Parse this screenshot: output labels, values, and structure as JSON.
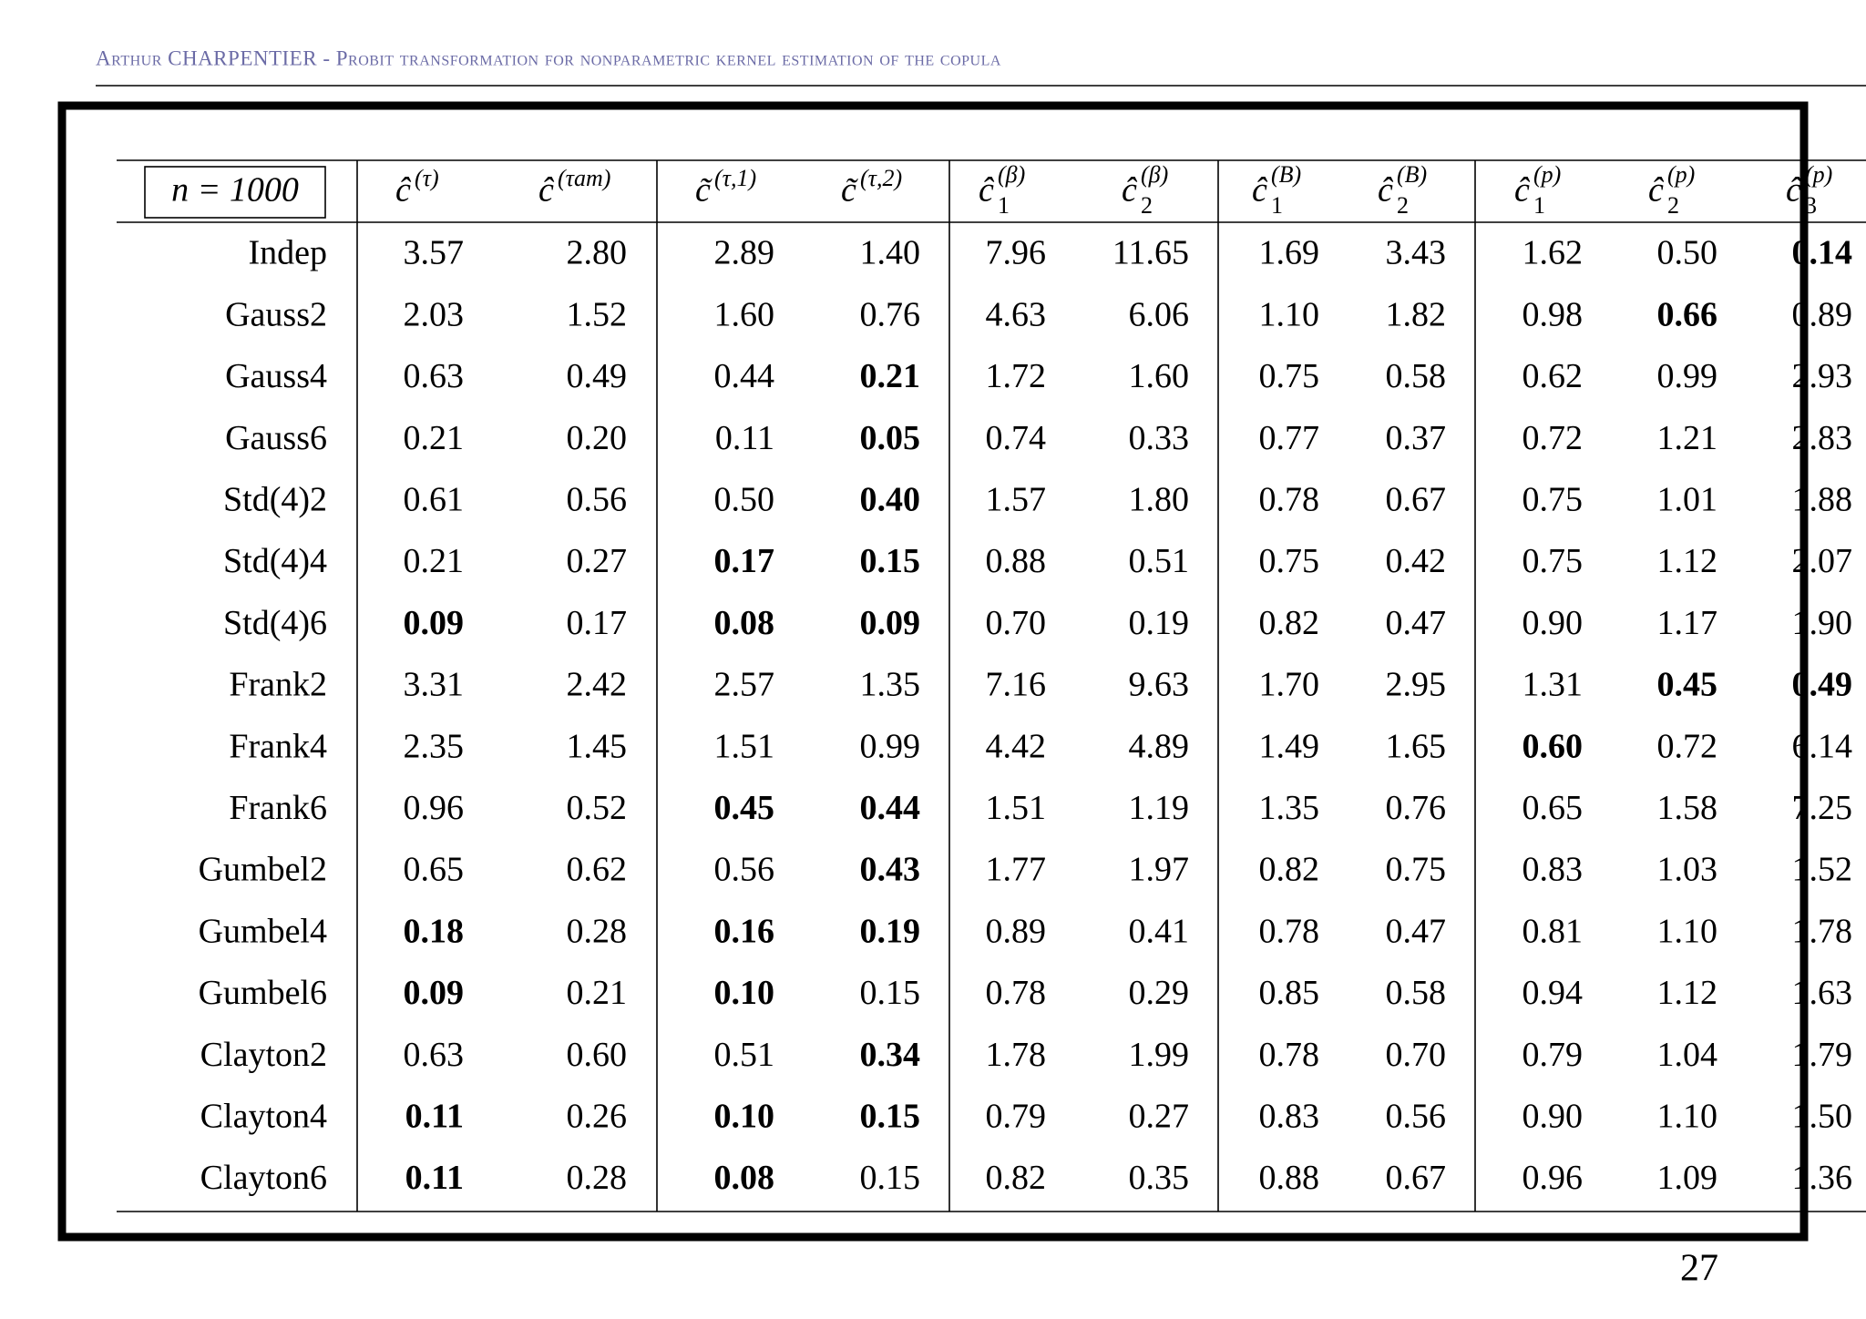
{
  "header": {
    "title": "Arthur CHARPENTIER - Probit transformation for nonparametric kernel estimation of the copula"
  },
  "table": {
    "corner": "n = 1000",
    "columns": [
      {
        "base": "ĉ",
        "sup": "(τ)"
      },
      {
        "base": "ĉ",
        "sup": "(τam)"
      },
      {
        "base": "c̃",
        "sup": "(τ,1)"
      },
      {
        "base": "c̃",
        "sup": "(τ,2)"
      },
      {
        "base": "ĉ",
        "sup": "(β)",
        "sub": "1"
      },
      {
        "base": "ĉ",
        "sup": "(β)",
        "sub": "2"
      },
      {
        "base": "ĉ",
        "sup": "(B)",
        "sub": "1"
      },
      {
        "base": "ĉ",
        "sup": "(B)",
        "sub": "2"
      },
      {
        "base": "ĉ",
        "sup": "(p)",
        "sub": "1"
      },
      {
        "base": "ĉ",
        "sup": "(p)",
        "sub": "2"
      },
      {
        "base": "ĉ",
        "sup": "(p)",
        "sub": "3"
      }
    ],
    "rows": [
      {
        "name": "Indep",
        "values": [
          "3.57",
          "2.80",
          "2.89",
          "1.40",
          "7.96",
          "11.65",
          "1.69",
          "3.43",
          "1.62",
          "0.50",
          "0.14"
        ],
        "bold": [
          10
        ]
      },
      {
        "name": "Gauss2",
        "values": [
          "2.03",
          "1.52",
          "1.60",
          "0.76",
          "4.63",
          "6.06",
          "1.10",
          "1.82",
          "0.98",
          "0.66",
          "0.89"
        ],
        "bold": [
          9
        ]
      },
      {
        "name": "Gauss4",
        "values": [
          "0.63",
          "0.49",
          "0.44",
          "0.21",
          "1.72",
          "1.60",
          "0.75",
          "0.58",
          "0.62",
          "0.99",
          "2.93"
        ],
        "bold": [
          3
        ]
      },
      {
        "name": "Gauss6",
        "values": [
          "0.21",
          "0.20",
          "0.11",
          "0.05",
          "0.74",
          "0.33",
          "0.77",
          "0.37",
          "0.72",
          "1.21",
          "2.83"
        ],
        "bold": [
          3
        ]
      },
      {
        "name": "Std(4)2",
        "values": [
          "0.61",
          "0.56",
          "0.50",
          "0.40",
          "1.57",
          "1.80",
          "0.78",
          "0.67",
          "0.75",
          "1.01",
          "1.88"
        ],
        "bold": [
          3
        ]
      },
      {
        "name": "Std(4)4",
        "values": [
          "0.21",
          "0.27",
          "0.17",
          "0.15",
          "0.88",
          "0.51",
          "0.75",
          "0.42",
          "0.75",
          "1.12",
          "2.07"
        ],
        "bold": [
          2,
          3
        ]
      },
      {
        "name": "Std(4)6",
        "values": [
          "0.09",
          "0.17",
          "0.08",
          "0.09",
          "0.70",
          "0.19",
          "0.82",
          "0.47",
          "0.90",
          "1.17",
          "1.90"
        ],
        "bold": [
          0,
          2,
          3
        ]
      },
      {
        "name": "Frank2",
        "values": [
          "3.31",
          "2.42",
          "2.57",
          "1.35",
          "7.16",
          "9.63",
          "1.70",
          "2.95",
          "1.31",
          "0.45",
          "0.49"
        ],
        "bold": [
          9,
          10
        ]
      },
      {
        "name": "Frank4",
        "values": [
          "2.35",
          "1.45",
          "1.51",
          "0.99",
          "4.42",
          "4.89",
          "1.49",
          "1.65",
          "0.60",
          "0.72",
          "6.14"
        ],
        "bold": [
          8
        ]
      },
      {
        "name": "Frank6",
        "values": [
          "0.96",
          "0.52",
          "0.45",
          "0.44",
          "1.51",
          "1.19",
          "1.35",
          "0.76",
          "0.65",
          "1.58",
          "7.25"
        ],
        "bold": [
          2,
          3
        ]
      },
      {
        "name": "Gumbel2",
        "values": [
          "0.65",
          "0.62",
          "0.56",
          "0.43",
          "1.77",
          "1.97",
          "0.82",
          "0.75",
          "0.83",
          "1.03",
          "1.52"
        ],
        "bold": [
          3
        ]
      },
      {
        "name": "Gumbel4",
        "values": [
          "0.18",
          "0.28",
          "0.16",
          "0.19",
          "0.89",
          "0.41",
          "0.78",
          "0.47",
          "0.81",
          "1.10",
          "1.78"
        ],
        "bold": [
          0,
          2,
          3
        ]
      },
      {
        "name": "Gumbel6",
        "values": [
          "0.09",
          "0.21",
          "0.10",
          "0.15",
          "0.78",
          "0.29",
          "0.85",
          "0.58",
          "0.94",
          "1.12",
          "1.63"
        ],
        "bold": [
          0,
          2
        ]
      },
      {
        "name": "Clayton2",
        "values": [
          "0.63",
          "0.60",
          "0.51",
          "0.34",
          "1.78",
          "1.99",
          "0.78",
          "0.70",
          "0.79",
          "1.04",
          "1.79"
        ],
        "bold": [
          3
        ]
      },
      {
        "name": "Clayton4",
        "values": [
          "0.11",
          "0.26",
          "0.10",
          "0.15",
          "0.79",
          "0.27",
          "0.83",
          "0.56",
          "0.90",
          "1.10",
          "1.50"
        ],
        "bold": [
          0,
          2,
          3
        ]
      },
      {
        "name": "Clayton6",
        "values": [
          "0.11",
          "0.28",
          "0.08",
          "0.15",
          "0.82",
          "0.35",
          "0.88",
          "0.67",
          "0.96",
          "1.09",
          "1.36"
        ],
        "bold": [
          0,
          2
        ]
      }
    ]
  },
  "footer": {
    "page": "27"
  }
}
